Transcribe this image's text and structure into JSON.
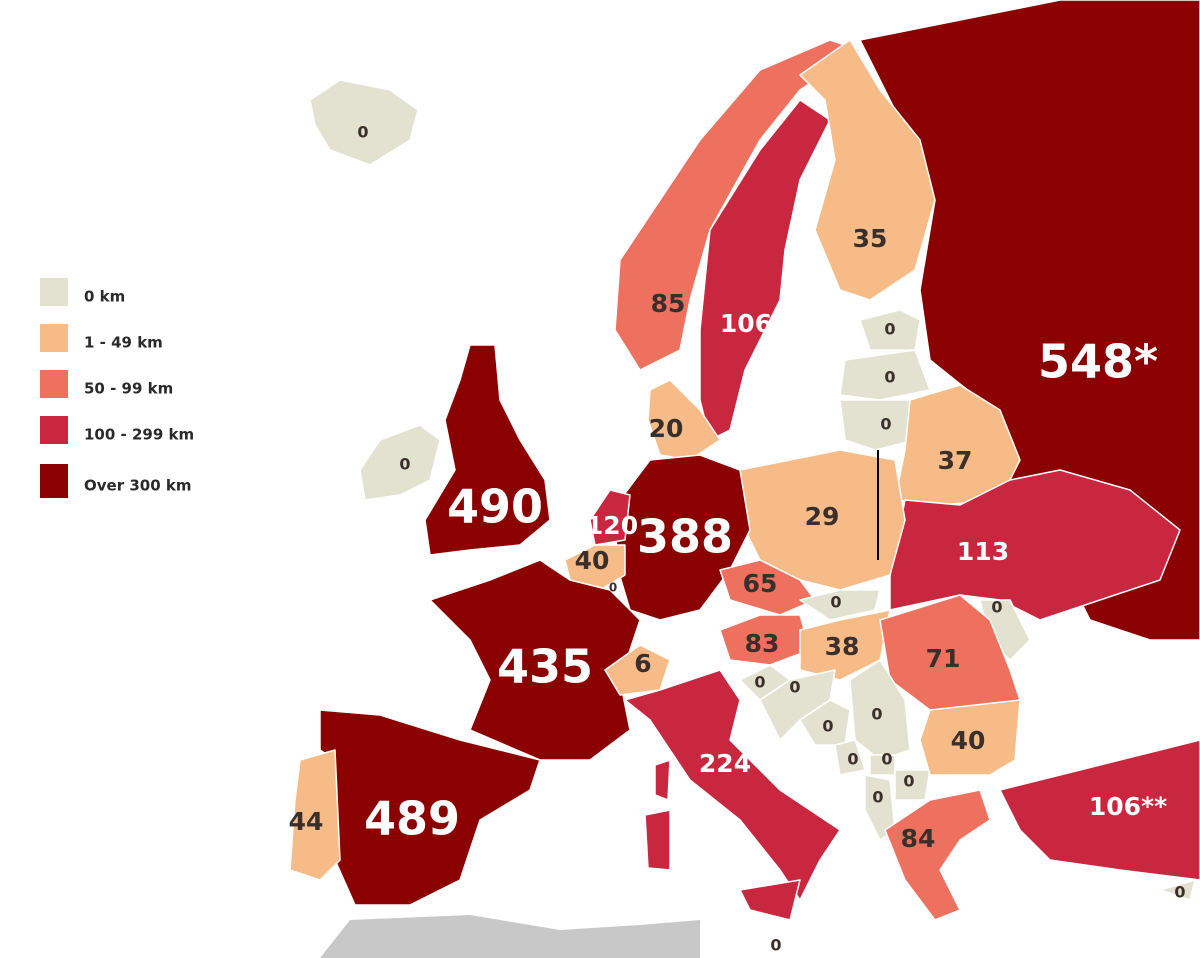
{
  "legend": [
    {
      "label": "0 km",
      "color": "#e3e1cf"
    },
    {
      "label": "1 - 49 km",
      "color": "#f7bb87"
    },
    {
      "label": "50 - 99 km",
      "color": "#ee705e"
    },
    {
      "label": "100 - 299 km",
      "color": "#c9263f"
    },
    {
      "label": "Over 300 km",
      "color": "#8b0000"
    }
  ],
  "labels": [
    "0",
    "0",
    "490",
    "85",
    "106",
    "35",
    "548*",
    "0",
    "0",
    "0",
    "20",
    "37",
    "120",
    "40",
    "0",
    "388",
    "29",
    "113",
    "65",
    "0",
    "0",
    "83",
    "38",
    "71",
    "435",
    "6",
    "0",
    "0",
    "0",
    "0",
    "0",
    "0",
    "0",
    "0",
    "40",
    "224",
    "84",
    "106**",
    "0",
    "44",
    "489",
    "0"
  ]
}
